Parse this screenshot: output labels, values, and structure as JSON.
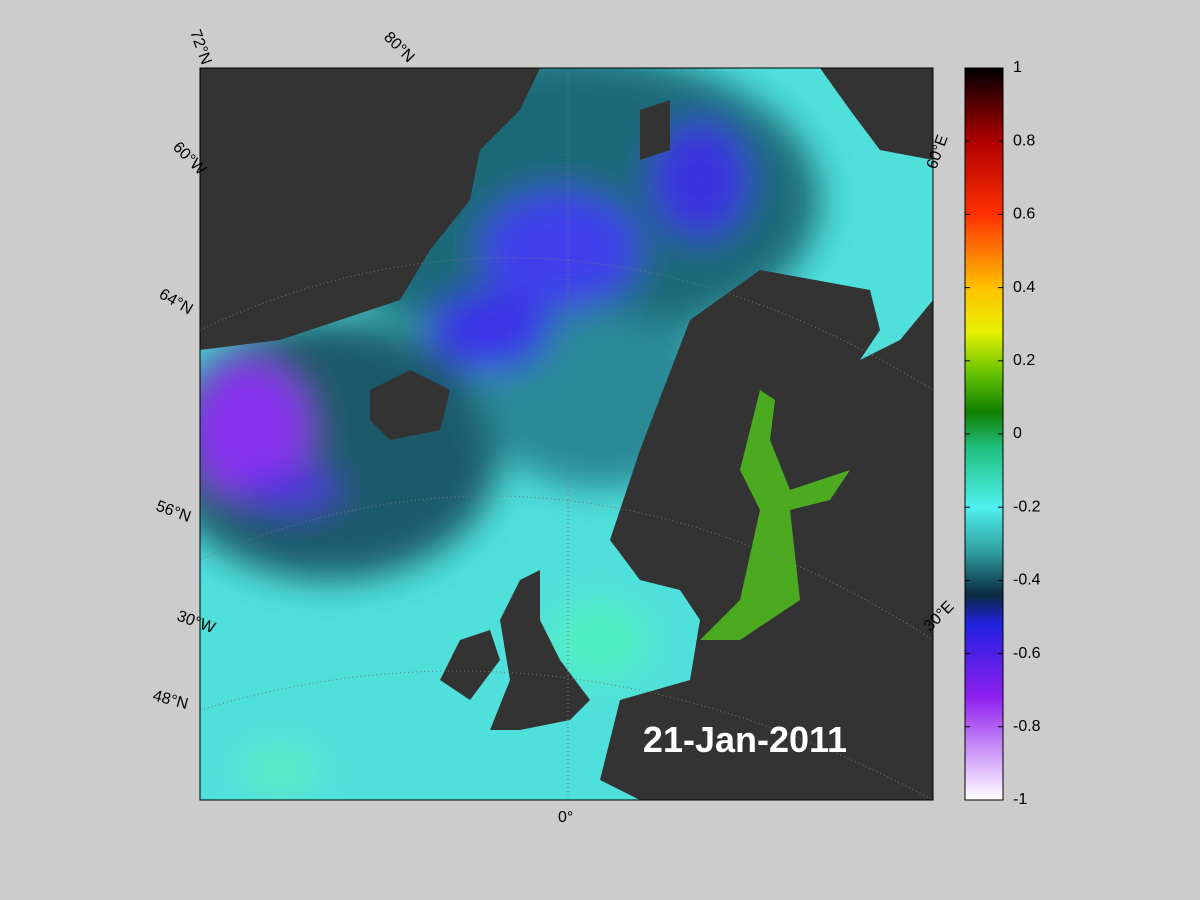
{
  "map": {
    "date_label": "21-Jan-2011",
    "graticule_labels": [
      "72°N",
      "80°N",
      "60°W",
      "64°N",
      "56°N",
      "30°W",
      "48°N",
      "0°",
      "60°E",
      "30°E"
    ]
  },
  "colorbar": {
    "lim": [
      -1,
      1
    ],
    "ticks": [
      1,
      0.8,
      0.6,
      0.4,
      0.2,
      0,
      -0.2,
      -0.4,
      -0.6,
      -0.8,
      -1
    ]
  }
}
